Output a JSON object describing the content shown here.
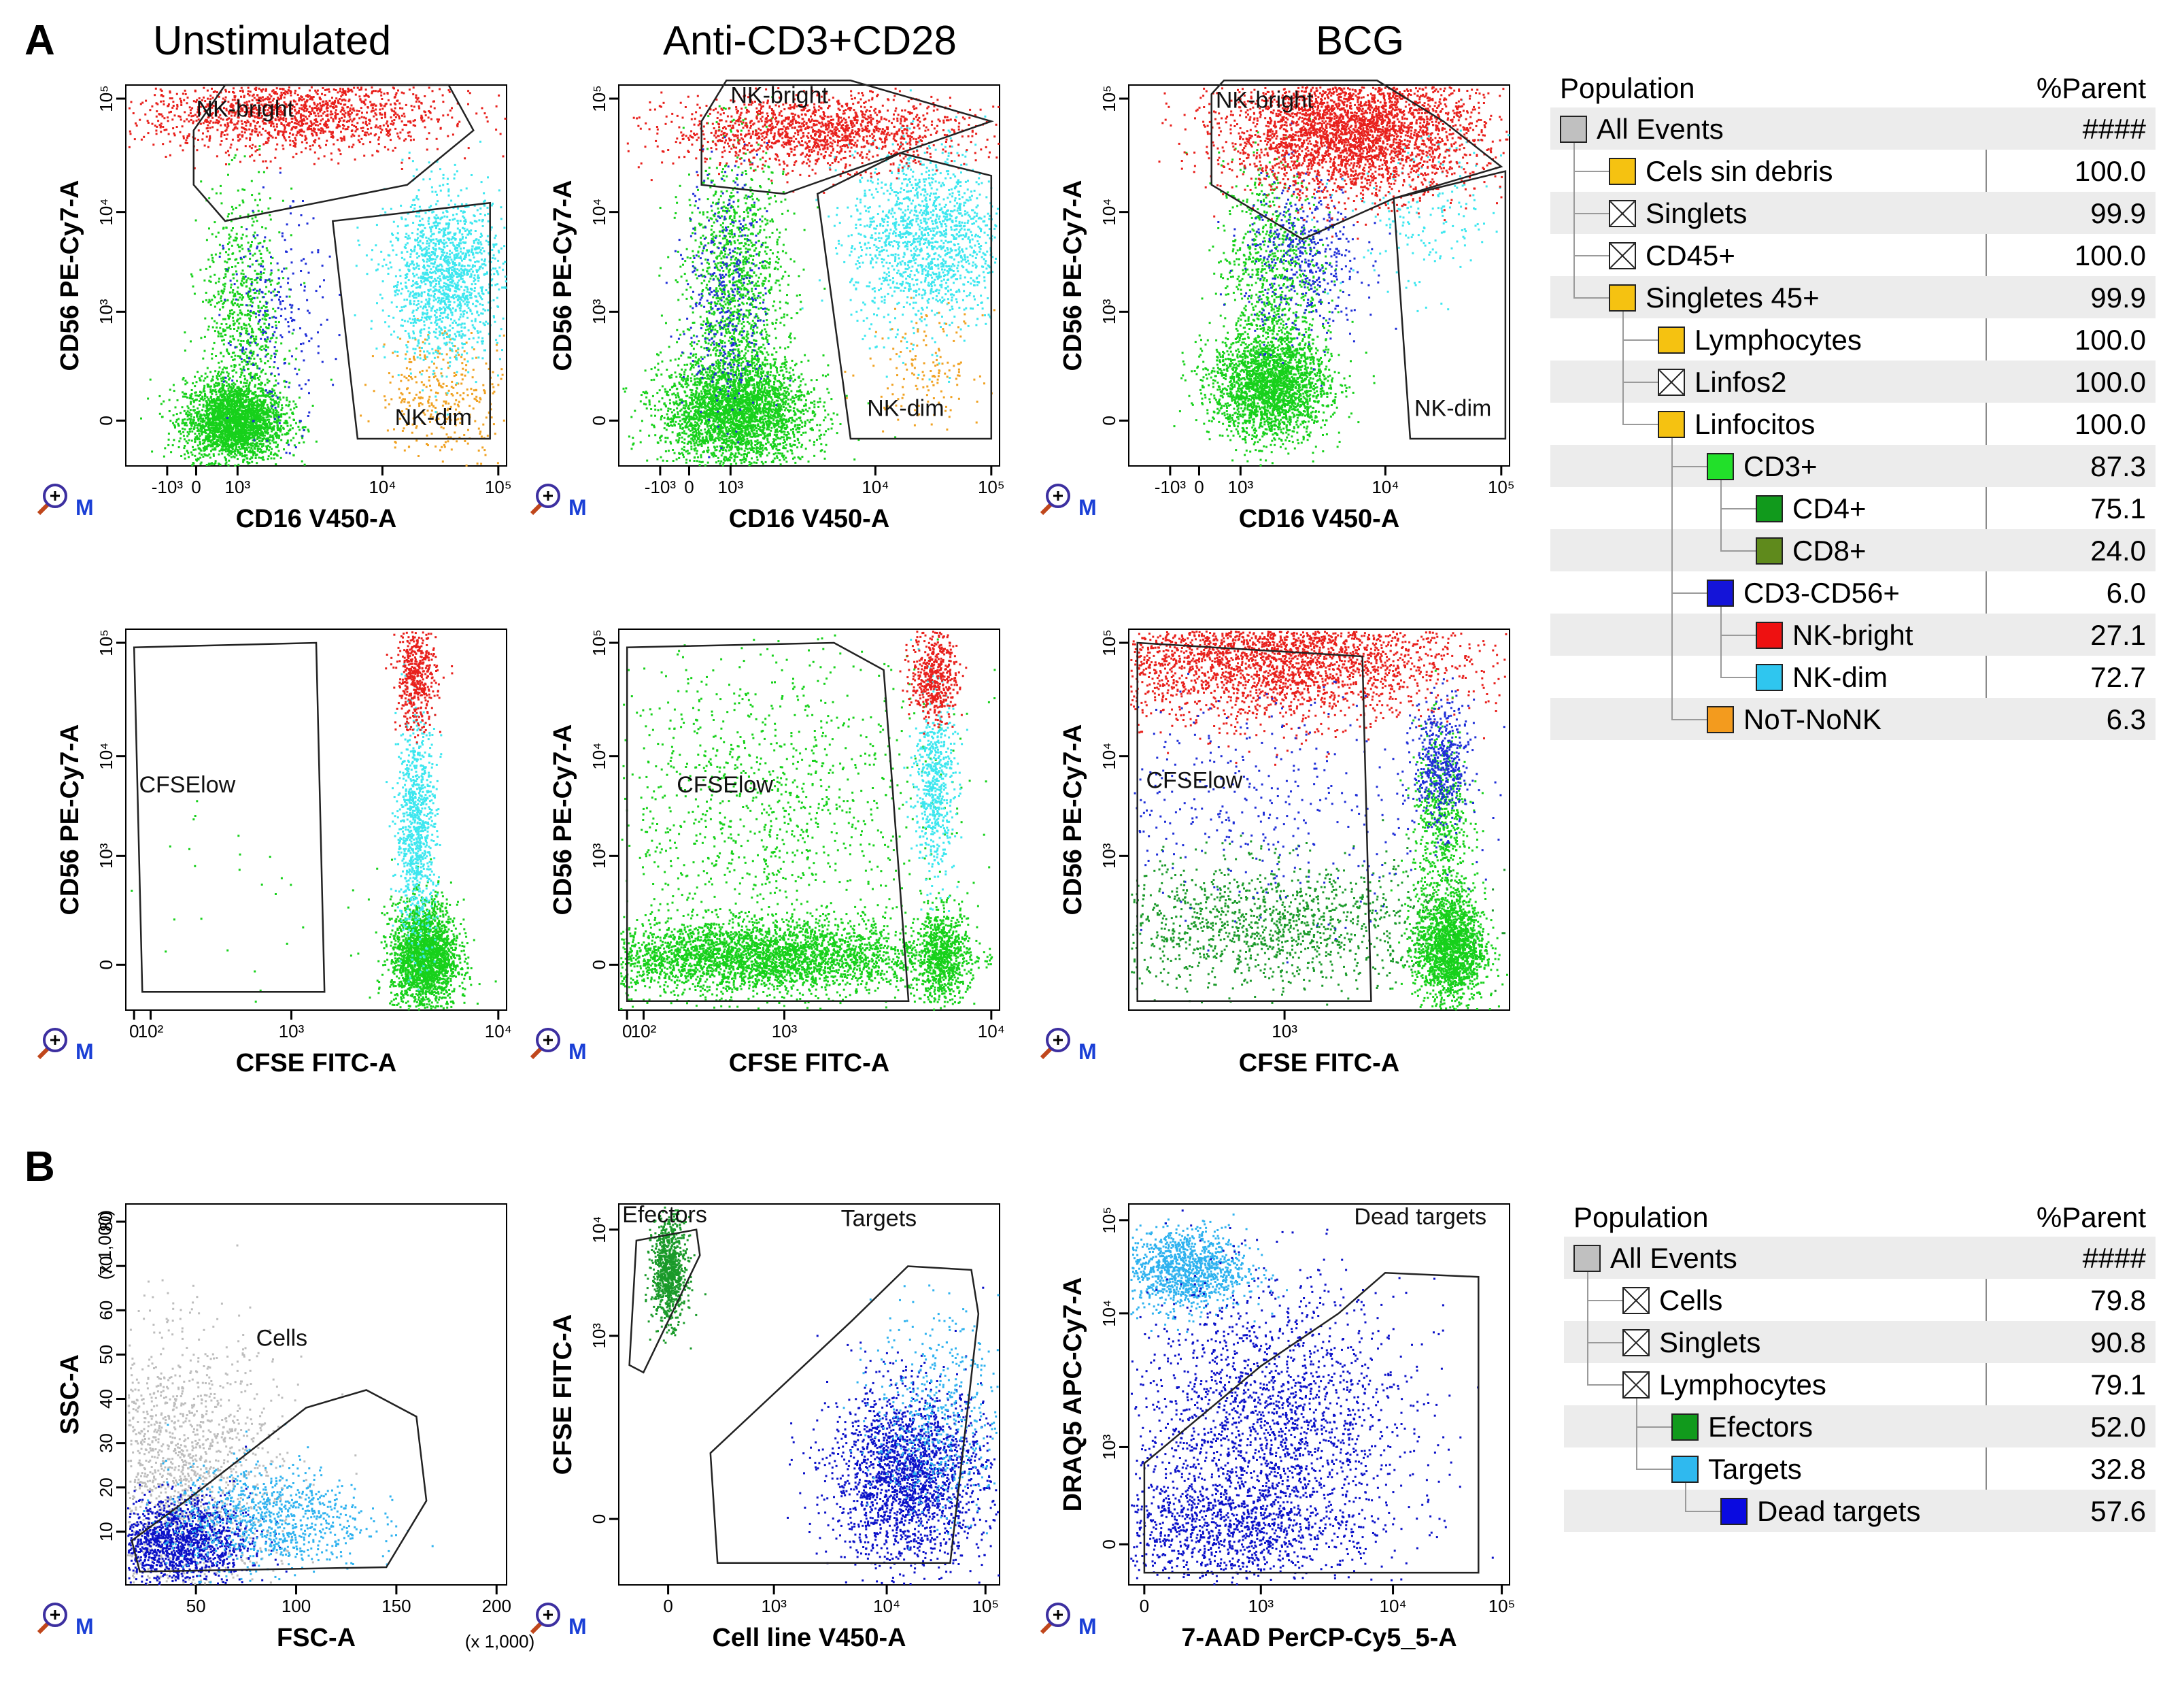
{
  "figure": {
    "panel_a": "A",
    "panel_b": "B",
    "column_titles": [
      "Unstimulated",
      "Anti-CD3+CD28",
      "BCG"
    ]
  },
  "colors": {
    "red": "#e8201c",
    "cyan": "#3de7ef",
    "green": "#17d11b",
    "darkgreen": "#1a9a2a",
    "blue": "#1f2fd8",
    "orange": "#f0a223",
    "grey": "#bdbdbd",
    "lightblue": "#2fb2ef",
    "navy": "#0b11c9"
  },
  "table_a": {
    "header": {
      "population": "Population",
      "parent": "%Parent"
    },
    "rows": [
      {
        "name": "All Events",
        "value": "####",
        "level": 0,
        "swatch": "#c0c0c0",
        "type": "box"
      },
      {
        "name": "Cels sin debris",
        "value": "100.0",
        "level": 1,
        "swatch": "#f5c211",
        "type": "box"
      },
      {
        "name": "Singlets",
        "value": "99.9",
        "level": 1,
        "swatch": "#ffffff",
        "type": "x"
      },
      {
        "name": "CD45+",
        "value": "100.0",
        "level": 1,
        "swatch": "#ffffff",
        "type": "x"
      },
      {
        "name": "Singletes 45+",
        "value": "99.9",
        "level": 1,
        "swatch": "#f5c211",
        "type": "box"
      },
      {
        "name": "Lymphocytes",
        "value": "100.0",
        "level": 2,
        "swatch": "#f5c211",
        "type": "box"
      },
      {
        "name": "Linfos2",
        "value": "100.0",
        "level": 2,
        "swatch": "#ffffff",
        "type": "x"
      },
      {
        "name": "Linfocitos",
        "value": "100.0",
        "level": 2,
        "swatch": "#f5c211",
        "type": "box"
      },
      {
        "name": "CD3+",
        "value": "87.3",
        "level": 3,
        "swatch": "#22e02a",
        "type": "box"
      },
      {
        "name": "CD4+",
        "value": "75.1",
        "level": 4,
        "swatch": "#119a1c",
        "type": "box"
      },
      {
        "name": "CD8+",
        "value": "24.0",
        "level": 4,
        "swatch": "#5f8a1c",
        "type": "box"
      },
      {
        "name": "CD3-CD56+",
        "value": "6.0",
        "level": 3,
        "swatch": "#1414d8",
        "type": "box"
      },
      {
        "name": "NK-bright",
        "value": "27.1",
        "level": 4,
        "swatch": "#ee1111",
        "type": "box"
      },
      {
        "name": "NK-dim",
        "value": "72.7",
        "level": 4,
        "swatch": "#2fc6ef",
        "type": "box"
      },
      {
        "name": "NoT-NoNK",
        "value": "6.3",
        "level": 3,
        "swatch": "#f39b1e",
        "type": "box"
      }
    ]
  },
  "table_b": {
    "header": {
      "population": "Population",
      "parent": "%Parent"
    },
    "rows": [
      {
        "name": "All Events",
        "value": "####",
        "level": 0,
        "swatch": "#c0c0c0",
        "type": "box"
      },
      {
        "name": "Cells",
        "value": "79.8",
        "level": 1,
        "swatch": "#ffffff",
        "type": "x"
      },
      {
        "name": "Singlets",
        "value": "90.8",
        "level": 1,
        "swatch": "#ffffff",
        "type": "x"
      },
      {
        "name": "Lymphocytes",
        "value": "79.1",
        "level": 1,
        "swatch": "#ffffff",
        "type": "x"
      },
      {
        "name": "Efectors",
        "value": "52.0",
        "level": 2,
        "swatch": "#119a1c",
        "type": "box"
      },
      {
        "name": "Targets",
        "value": "32.8",
        "level": 2,
        "swatch": "#2fb9ef",
        "type": "box"
      },
      {
        "name": "Dead targets",
        "value": "57.6",
        "level": 3,
        "swatch": "#0a0ae0",
        "type": "box"
      }
    ]
  },
  "chart_data": [
    {
      "type": "scatter",
      "id": "a1",
      "title": "Unstimulated",
      "xlabel": "CD16 V450-A",
      "ylabel": "CD56 PE-Cy7-A",
      "x_ticks": [
        "-10³",
        "0",
        "10³",
        "10⁴",
        "10⁵"
      ],
      "y_ticks": [
        "10⁵",
        "10⁴",
        "10³",
        "0"
      ],
      "gates": [
        {
          "label": "NK-bright"
        },
        {
          "label": "NK-dim"
        }
      ],
      "populations": [
        {
          "color": "green",
          "count": 2600,
          "cx": 0.5,
          "cy": 0,
          "sx": 0.3,
          "sy": 0.22
        },
        {
          "color": "green",
          "count": 800,
          "cx": 0.6,
          "cy": 1.1,
          "sx": 0.25,
          "sy": 0.7
        },
        {
          "color": "blue",
          "count": 250,
          "cx": 1.0,
          "cy": 1.1,
          "sx": 0.3,
          "sy": 0.6
        },
        {
          "color": "orange",
          "count": 350,
          "cx": 3.05,
          "cy": 0.3,
          "sx": 0.4,
          "sy": 0.35
        },
        {
          "color": "cyan",
          "count": 1500,
          "cx": 3.05,
          "cy": 1.6,
          "sx": 0.35,
          "sy": 0.45
        },
        {
          "color": "red",
          "count": 1600,
          "cx": 1.2,
          "cy": 3.4,
          "sx": 0.9,
          "sy": 0.22
        }
      ]
    },
    {
      "type": "scatter",
      "id": "a2",
      "title": "Anti-CD3+CD28",
      "xlabel": "CD16 V450-A",
      "ylabel": "CD56 PE-Cy7-A",
      "x_ticks": [
        "-10³",
        "0",
        "10³",
        "10⁴",
        "10⁵"
      ],
      "y_ticks": [
        "10⁵",
        "10⁴",
        "10³",
        "0"
      ],
      "gates": [
        {
          "label": "NK-bright"
        },
        {
          "label": "NK-dim"
        }
      ],
      "populations": [
        {
          "color": "green",
          "count": 3000,
          "cx": 0.6,
          "cy": 0.1,
          "sx": 0.45,
          "sy": 0.3
        },
        {
          "color": "green",
          "count": 1400,
          "cx": 0.6,
          "cy": 1.4,
          "sx": 0.3,
          "sy": 0.8
        },
        {
          "color": "blue",
          "count": 400,
          "cx": 0.5,
          "cy": 1.4,
          "sx": 0.25,
          "sy": 0.7
        },
        {
          "color": "cyan",
          "count": 1500,
          "cx": 2.9,
          "cy": 2.0,
          "sx": 0.45,
          "sy": 0.5
        },
        {
          "color": "orange",
          "count": 150,
          "cx": 2.9,
          "cy": 0.6,
          "sx": 0.35,
          "sy": 0.3
        },
        {
          "color": "red",
          "count": 1500,
          "cx": 1.6,
          "cy": 3.2,
          "sx": 0.9,
          "sy": 0.2
        }
      ]
    },
    {
      "type": "scatter",
      "id": "a3",
      "title": "BCG",
      "xlabel": "CD16 V450-A",
      "ylabel": "CD56 PE-Cy7-A",
      "x_ticks": [
        "-10³",
        "0",
        "10³",
        "10⁴",
        "10⁵"
      ],
      "y_ticks": [
        "10⁵",
        "10⁴",
        "10³",
        "0"
      ],
      "gates": [
        {
          "label": "NK-bright"
        },
        {
          "label": "NK-dim"
        }
      ],
      "populations": [
        {
          "color": "green",
          "count": 2400,
          "cx": 0.9,
          "cy": 0.4,
          "sx": 0.35,
          "sy": 0.3
        },
        {
          "color": "green",
          "count": 800,
          "cx": 0.9,
          "cy": 1.7,
          "sx": 0.3,
          "sy": 0.6
        },
        {
          "color": "blue",
          "count": 500,
          "cx": 1.3,
          "cy": 1.8,
          "sx": 0.35,
          "sy": 0.45
        },
        {
          "color": "cyan",
          "count": 200,
          "cx": 2.8,
          "cy": 2.3,
          "sx": 0.5,
          "sy": 0.45
        },
        {
          "color": "red",
          "count": 3500,
          "cx": 1.9,
          "cy": 3.2,
          "sx": 0.75,
          "sy": 0.35
        }
      ]
    },
    {
      "type": "scatter",
      "id": "a4",
      "xlabel": "CFSE FITC-A",
      "ylabel": "CD56 PE-Cy7-A",
      "x_ticks": [
        "0",
        "10²",
        "10³",
        "10⁴"
      ],
      "y_ticks": [
        "10⁵",
        "10⁴",
        "10³",
        "0"
      ],
      "gates": [
        {
          "label": "CFSElow"
        }
      ],
      "populations": [
        {
          "color": "green",
          "count": 2200,
          "cx": 3.4,
          "cy": 0.1,
          "sx": 0.1,
          "sy": 0.3
        },
        {
          "color": "cyan",
          "count": 900,
          "cx": 3.35,
          "cy": 1.5,
          "sx": 0.06,
          "sy": 0.6
        },
        {
          "color": "red",
          "count": 500,
          "cx": 3.35,
          "cy": 3.2,
          "sx": 0.06,
          "sy": 0.3
        },
        {
          "color": "green",
          "count": 30,
          "cx": 2.3,
          "cy": 0.8,
          "sx": 0.5,
          "sy": 0.6
        }
      ]
    },
    {
      "type": "scatter",
      "id": "a5",
      "xlabel": "CFSE FITC-A",
      "ylabel": "CD56 PE-Cy7-A",
      "x_ticks": [
        "0",
        "10²",
        "10³",
        "10⁴"
      ],
      "y_ticks": [
        "10⁵",
        "10⁴",
        "10³",
        "0"
      ],
      "gates": [
        {
          "label": "CFSElow"
        }
      ],
      "populations": [
        {
          "color": "green",
          "count": 3500,
          "cx": 2.4,
          "cy": 0.1,
          "sx": 0.55,
          "sy": 0.2
        },
        {
          "color": "green",
          "count": 1200,
          "cx": 2.5,
          "cy": 1.7,
          "sx": 0.55,
          "sy": 0.9
        },
        {
          "color": "green",
          "count": 800,
          "cx": 3.55,
          "cy": 0.1,
          "sx": 0.08,
          "sy": 0.25
        },
        {
          "color": "cyan",
          "count": 600,
          "cx": 3.5,
          "cy": 2.0,
          "sx": 0.06,
          "sy": 0.5
        },
        {
          "color": "red",
          "count": 500,
          "cx": 3.5,
          "cy": 3.2,
          "sx": 0.07,
          "sy": 0.25
        }
      ]
    },
    {
      "type": "scatter",
      "id": "a6",
      "xlabel": "CFSE FITC-A",
      "ylabel": "CD56 PE-Cy7-A",
      "x_ticks": [
        "10³"
      ],
      "y_ticks": [
        "10⁵",
        "10⁴",
        "10³"
      ],
      "gates": [
        {
          "label": "CFSElow"
        }
      ],
      "populations": [
        {
          "color": "red",
          "count": 3200,
          "cx": 2.5,
          "cy": 3.4,
          "sx": 0.55,
          "sy": 0.35
        },
        {
          "color": "darkgreen",
          "count": 1400,
          "cx": 2.5,
          "cy": 0.45,
          "sx": 0.55,
          "sy": 0.35
        },
        {
          "color": "green",
          "count": 1800,
          "cx": 3.55,
          "cy": 0.2,
          "sx": 0.1,
          "sy": 0.3
        },
        {
          "color": "green",
          "count": 600,
          "cx": 3.5,
          "cy": 1.6,
          "sx": 0.08,
          "sy": 0.5
        },
        {
          "color": "blue",
          "count": 500,
          "cx": 3.5,
          "cy": 2.2,
          "sx": 0.08,
          "sy": 0.35
        },
        {
          "color": "blue",
          "count": 400,
          "cx": 2.5,
          "cy": 1.8,
          "sx": 0.55,
          "sy": 0.6
        }
      ]
    },
    {
      "type": "scatter",
      "id": "b1",
      "xlabel": "FSC-A",
      "ylabel": "SSC-A",
      "x_unit": "(x 1,000)",
      "y_unit": "(x 1,000)",
      "x_ticks": [
        "50",
        "100",
        "150",
        "200"
      ],
      "y_ticks": [
        "80",
        "70",
        "60",
        "50",
        "40",
        "30",
        "20",
        "10"
      ],
      "gates": [
        {
          "label": "Cells"
        }
      ],
      "populations": [
        {
          "color": "grey",
          "count": 1800,
          "cx": 40,
          "cy": 22,
          "sx": 25,
          "sy": 16
        },
        {
          "color": "navy",
          "count": 1500,
          "cx": 40,
          "cy": 8,
          "sx": 18,
          "sy": 5
        },
        {
          "color": "lightblue",
          "count": 900,
          "cx": 85,
          "cy": 13,
          "sx": 25,
          "sy": 6
        }
      ]
    },
    {
      "type": "scatter",
      "id": "b2",
      "xlabel": "Cell line V450-A",
      "ylabel": "CFSE FITC-A",
      "x_ticks": [
        "0",
        "10³",
        "10⁴",
        "10⁵"
      ],
      "y_ticks": [
        "10⁴",
        "10³",
        "0"
      ],
      "gates": [
        {
          "label": "Efectors"
        },
        {
          "label": "Targets"
        }
      ],
      "populations": [
        {
          "color": "darkgreen",
          "count": 900,
          "cx": 0.0,
          "cy": 3.4,
          "sx": 0.12,
          "sy": 0.35
        },
        {
          "color": "navy",
          "count": 2200,
          "cx": 3.4,
          "cy": 0.6,
          "sx": 0.55,
          "sy": 0.6
        },
        {
          "color": "lightblue",
          "count": 500,
          "cx": 3.8,
          "cy": 1.4,
          "sx": 0.45,
          "sy": 0.7
        }
      ]
    },
    {
      "type": "scatter",
      "id": "b3",
      "xlabel": "7-AAD PerCP-Cy5_5-A",
      "ylabel": "DRAQ5 APC-Cy7-A",
      "x_ticks": [
        "0",
        "10³",
        "10⁴",
        "10⁵"
      ],
      "y_ticks": [
        "10⁵",
        "10⁴",
        "10³",
        "0"
      ],
      "gates": [
        {
          "label": "Dead targets"
        }
      ],
      "populations": [
        {
          "color": "lightblue",
          "count": 1200,
          "cx": 0.5,
          "cy": 3.4,
          "sx": 0.4,
          "sy": 0.25
        },
        {
          "color": "navy",
          "count": 2200,
          "cx": 1.6,
          "cy": 1.4,
          "sx": 0.9,
          "sy": 0.9
        },
        {
          "color": "navy",
          "count": 900,
          "cx": 1.0,
          "cy": 0.2,
          "sx": 0.8,
          "sy": 0.3
        }
      ]
    }
  ]
}
